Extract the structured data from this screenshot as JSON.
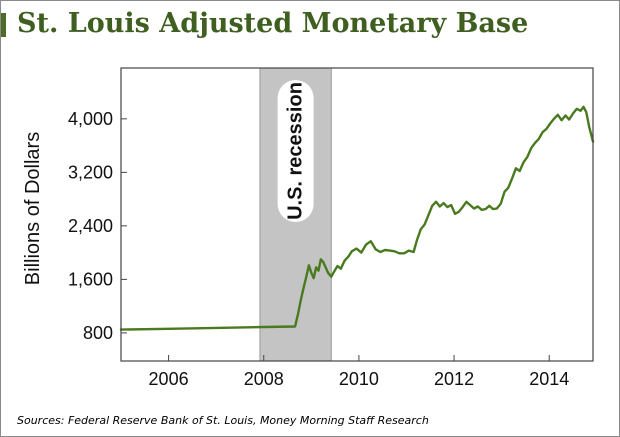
{
  "page": {
    "title": "St. Louis Adjusted Monetary Base",
    "source": "Sources: Federal Reserve Bank of St. Louis, Money Morning Staff Research"
  },
  "chart_data": {
    "type": "line",
    "title": "St. Louis Adjusted Monetary Base",
    "ylabel": "Billions of Dollars",
    "xlabel": "",
    "xlim": [
      2005.0,
      2014.92
    ],
    "ylim": [
      380,
      4760
    ],
    "x_ticks": [
      2006,
      2008,
      2010,
      2012,
      2014
    ],
    "y_ticks": [
      800,
      1600,
      2400,
      3200,
      4000
    ],
    "y_tick_labels": [
      "800",
      "1,600",
      "2,400",
      "3,200",
      "4,000"
    ],
    "grid": false,
    "line_color": "#4a7a1f",
    "recession": {
      "label": "U.S. recession",
      "start": 2007.92,
      "end": 2009.42,
      "color": "#c4c4c4"
    },
    "series": [
      {
        "x": [
          2005.0,
          2006.0,
          2007.0,
          2008.0,
          2008.66,
          2008.72,
          2008.78,
          2008.84,
          2008.9,
          2008.95,
          2009.0,
          2009.05,
          2009.1,
          2009.15,
          2009.2,
          2009.25,
          2009.3,
          2009.35,
          2009.42,
          2009.48,
          2009.55,
          2009.62,
          2009.7,
          2009.78,
          2009.85,
          2009.95,
          2010.05,
          2010.15,
          2010.25,
          2010.35,
          2010.45,
          2010.55,
          2010.65,
          2010.75,
          2010.85,
          2010.95,
          2011.05,
          2011.15,
          2011.22,
          2011.3,
          2011.38,
          2011.46,
          2011.54,
          2011.62,
          2011.7,
          2011.78,
          2011.86,
          2011.94,
          2012.02,
          2012.1,
          2012.18,
          2012.26,
          2012.34,
          2012.42,
          2012.5,
          2012.58,
          2012.66,
          2012.74,
          2012.82,
          2012.9,
          2012.98,
          2013.06,
          2013.14,
          2013.22,
          2013.3,
          2013.38,
          2013.46,
          2013.54,
          2013.62,
          2013.7,
          2013.78,
          2013.86,
          2013.94,
          2014.02,
          2014.1,
          2014.18,
          2014.26,
          2014.34,
          2014.42,
          2014.5,
          2014.58,
          2014.66,
          2014.72,
          2014.78,
          2014.84,
          2014.92
        ],
        "y": [
          850,
          862,
          875,
          888,
          895,
          1080,
          1300,
          1480,
          1660,
          1810,
          1700,
          1620,
          1780,
          1730,
          1900,
          1860,
          1780,
          1700,
          1640,
          1720,
          1800,
          1760,
          1880,
          1940,
          2020,
          2060,
          2000,
          2120,
          2170,
          2050,
          2010,
          2040,
          2030,
          2020,
          1990,
          1990,
          2030,
          2010,
          2190,
          2350,
          2420,
          2560,
          2700,
          2760,
          2690,
          2740,
          2680,
          2710,
          2580,
          2610,
          2680,
          2760,
          2710,
          2660,
          2690,
          2640,
          2650,
          2700,
          2650,
          2660,
          2730,
          2910,
          2970,
          3110,
          3260,
          3220,
          3350,
          3430,
          3560,
          3640,
          3700,
          3800,
          3850,
          3930,
          4000,
          4060,
          3980,
          4050,
          3990,
          4080,
          4150,
          4120,
          4180,
          4100,
          3880,
          3660
        ]
      }
    ]
  }
}
